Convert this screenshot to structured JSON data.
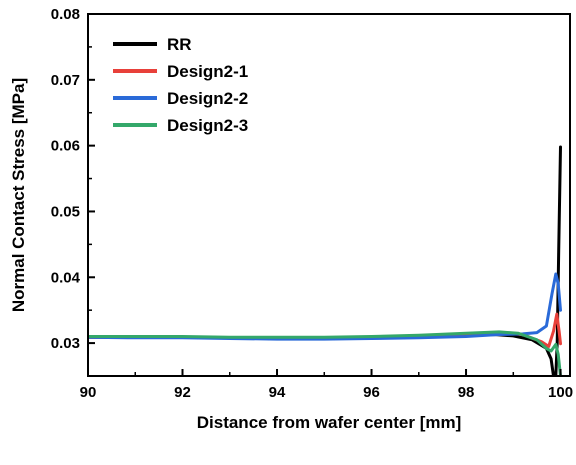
{
  "chart_data": {
    "type": "line",
    "title": "",
    "xlabel": "Distance from wafer center [mm]",
    "ylabel": "Normal Contact Stress [MPa]",
    "xlim": [
      90,
      100.2
    ],
    "ylim": [
      0.025,
      0.08
    ],
    "x_ticks": [
      90,
      92,
      94,
      96,
      98,
      100
    ],
    "x_tick_labels": [
      "90",
      "92",
      "94",
      "96",
      "98",
      "100"
    ],
    "y_ticks": [
      0.03,
      0.04,
      0.05,
      0.06,
      0.07,
      0.08
    ],
    "y_tick_labels": [
      "0.03",
      "0.04",
      "0.05",
      "0.06",
      "0.07",
      "0.08"
    ],
    "grid": false,
    "legend_position": "top-left",
    "series": [
      {
        "name": "RR",
        "color": "#000000",
        "points": [
          [
            90,
            0.0309
          ],
          [
            91,
            0.0309
          ],
          [
            92,
            0.0309
          ],
          [
            93,
            0.0308
          ],
          [
            94,
            0.0308
          ],
          [
            95,
            0.0308
          ],
          [
            96,
            0.0309
          ],
          [
            97,
            0.031
          ],
          [
            98,
            0.0312
          ],
          [
            98.6,
            0.0313
          ],
          [
            99,
            0.0311
          ],
          [
            99.4,
            0.0305
          ],
          [
            99.7,
            0.0292
          ],
          [
            99.8,
            0.0276
          ],
          [
            99.85,
            0.025
          ],
          [
            99.9,
            0.025
          ],
          [
            99.93,
            0.03
          ],
          [
            99.96,
            0.044
          ],
          [
            100,
            0.0598
          ]
        ]
      },
      {
        "name": "Design2-1",
        "color": "#e8403a",
        "points": [
          [
            90,
            0.0309
          ],
          [
            91,
            0.0309
          ],
          [
            92,
            0.0309
          ],
          [
            93,
            0.0308
          ],
          [
            94,
            0.0308
          ],
          [
            95,
            0.0308
          ],
          [
            96,
            0.0309
          ],
          [
            97,
            0.0311
          ],
          [
            98,
            0.0314
          ],
          [
            98.7,
            0.0316
          ],
          [
            99.2,
            0.0313
          ],
          [
            99.6,
            0.0302
          ],
          [
            99.75,
            0.0295
          ],
          [
            99.85,
            0.0318
          ],
          [
            99.92,
            0.0344
          ],
          [
            99.97,
            0.0318
          ],
          [
            100,
            0.0299
          ]
        ]
      },
      {
        "name": "Design2-2",
        "color": "#2a6ad8",
        "points": [
          [
            90,
            0.0309
          ],
          [
            91,
            0.0308
          ],
          [
            92,
            0.0308
          ],
          [
            93,
            0.0307
          ],
          [
            94,
            0.0306
          ],
          [
            95,
            0.0306
          ],
          [
            96,
            0.0307
          ],
          [
            97,
            0.0308
          ],
          [
            98,
            0.031
          ],
          [
            98.7,
            0.0313
          ],
          [
            99.2,
            0.0314
          ],
          [
            99.5,
            0.0316
          ],
          [
            99.7,
            0.0326
          ],
          [
            99.82,
            0.0375
          ],
          [
            99.9,
            0.0405
          ],
          [
            99.95,
            0.039
          ],
          [
            100,
            0.035
          ]
        ]
      },
      {
        "name": "Design2-3",
        "color": "#34a86a",
        "points": [
          [
            90,
            0.031
          ],
          [
            91,
            0.031
          ],
          [
            92,
            0.031
          ],
          [
            93,
            0.0309
          ],
          [
            94,
            0.0309
          ],
          [
            95,
            0.0309
          ],
          [
            96,
            0.031
          ],
          [
            97,
            0.0312
          ],
          [
            98,
            0.0315
          ],
          [
            98.7,
            0.0317
          ],
          [
            99.1,
            0.0315
          ],
          [
            99.5,
            0.0305
          ],
          [
            99.7,
            0.0292
          ],
          [
            99.8,
            0.0288
          ],
          [
            99.9,
            0.0298
          ],
          [
            99.95,
            0.0283
          ],
          [
            100,
            0.025
          ]
        ]
      }
    ]
  }
}
